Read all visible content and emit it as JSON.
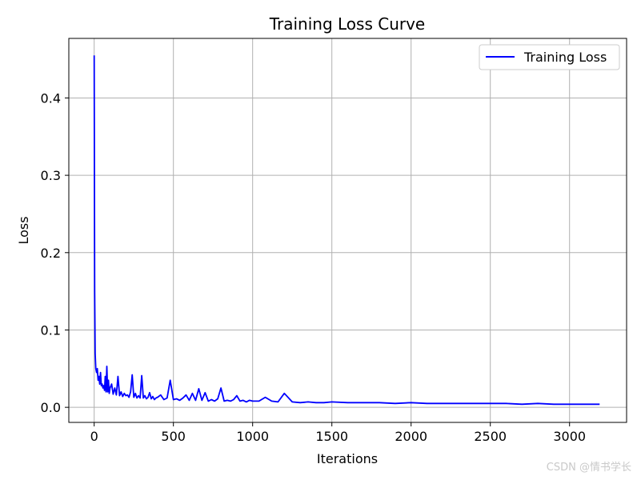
{
  "chart_data": {
    "type": "line",
    "title": "Training Loss Curve",
    "xlabel": "Iterations",
    "ylabel": "Loss",
    "xlim": [
      -160,
      3360
    ],
    "ylim": [
      -0.0195,
      0.477
    ],
    "x_ticks": [
      0,
      500,
      1000,
      1500,
      2000,
      2500,
      3000
    ],
    "y_ticks": [
      0.0,
      0.1,
      0.2,
      0.3,
      0.4
    ],
    "x_tick_labels": [
      "0",
      "500",
      "1000",
      "1500",
      "2000",
      "2500",
      "3000"
    ],
    "y_tick_labels": [
      "0.0",
      "0.1",
      "0.2",
      "0.3",
      "0.4"
    ],
    "grid": true,
    "legend_position": "top-right",
    "series": [
      {
        "name": "Training Loss",
        "color": "#0000ff",
        "x": [
          0,
          3,
          6,
          10,
          15,
          20,
          25,
          30,
          35,
          40,
          45,
          50,
          55,
          60,
          65,
          70,
          75,
          80,
          85,
          90,
          95,
          100,
          110,
          120,
          130,
          140,
          150,
          160,
          170,
          180,
          190,
          200,
          210,
          220,
          230,
          240,
          250,
          260,
          270,
          280,
          290,
          300,
          310,
          320,
          330,
          340,
          350,
          360,
          370,
          380,
          390,
          400,
          420,
          440,
          460,
          480,
          500,
          520,
          540,
          560,
          580,
          600,
          620,
          640,
          660,
          680,
          700,
          720,
          740,
          760,
          780,
          800,
          820,
          840,
          860,
          880,
          900,
          920,
          940,
          960,
          980,
          1000,
          1040,
          1080,
          1120,
          1160,
          1200,
          1250,
          1300,
          1350,
          1400,
          1450,
          1500,
          1600,
          1700,
          1800,
          1900,
          2000,
          2100,
          2200,
          2300,
          2400,
          2500,
          2600,
          2700,
          2800,
          2900,
          3000,
          3100,
          3190
        ],
        "values": [
          0.455,
          0.15,
          0.07,
          0.05,
          0.045,
          0.05,
          0.035,
          0.04,
          0.03,
          0.045,
          0.028,
          0.03,
          0.025,
          0.028,
          0.022,
          0.04,
          0.02,
          0.053,
          0.02,
          0.035,
          0.018,
          0.025,
          0.03,
          0.017,
          0.025,
          0.016,
          0.04,
          0.015,
          0.02,
          0.014,
          0.018,
          0.015,
          0.016,
          0.013,
          0.02,
          0.042,
          0.013,
          0.018,
          0.012,
          0.015,
          0.012,
          0.041,
          0.012,
          0.015,
          0.011,
          0.013,
          0.019,
          0.011,
          0.014,
          0.01,
          0.012,
          0.013,
          0.016,
          0.01,
          0.012,
          0.035,
          0.01,
          0.011,
          0.009,
          0.012,
          0.016,
          0.009,
          0.018,
          0.009,
          0.024,
          0.009,
          0.019,
          0.008,
          0.01,
          0.008,
          0.011,
          0.025,
          0.008,
          0.009,
          0.008,
          0.01,
          0.015,
          0.008,
          0.009,
          0.007,
          0.009,
          0.008,
          0.008,
          0.013,
          0.008,
          0.007,
          0.018,
          0.007,
          0.006,
          0.007,
          0.006,
          0.006,
          0.007,
          0.006,
          0.006,
          0.006,
          0.005,
          0.006,
          0.005,
          0.005,
          0.005,
          0.005,
          0.005,
          0.005,
          0.004,
          0.005,
          0.004,
          0.004,
          0.004,
          0.004
        ]
      }
    ]
  },
  "watermark": "CSDN @情书学长"
}
